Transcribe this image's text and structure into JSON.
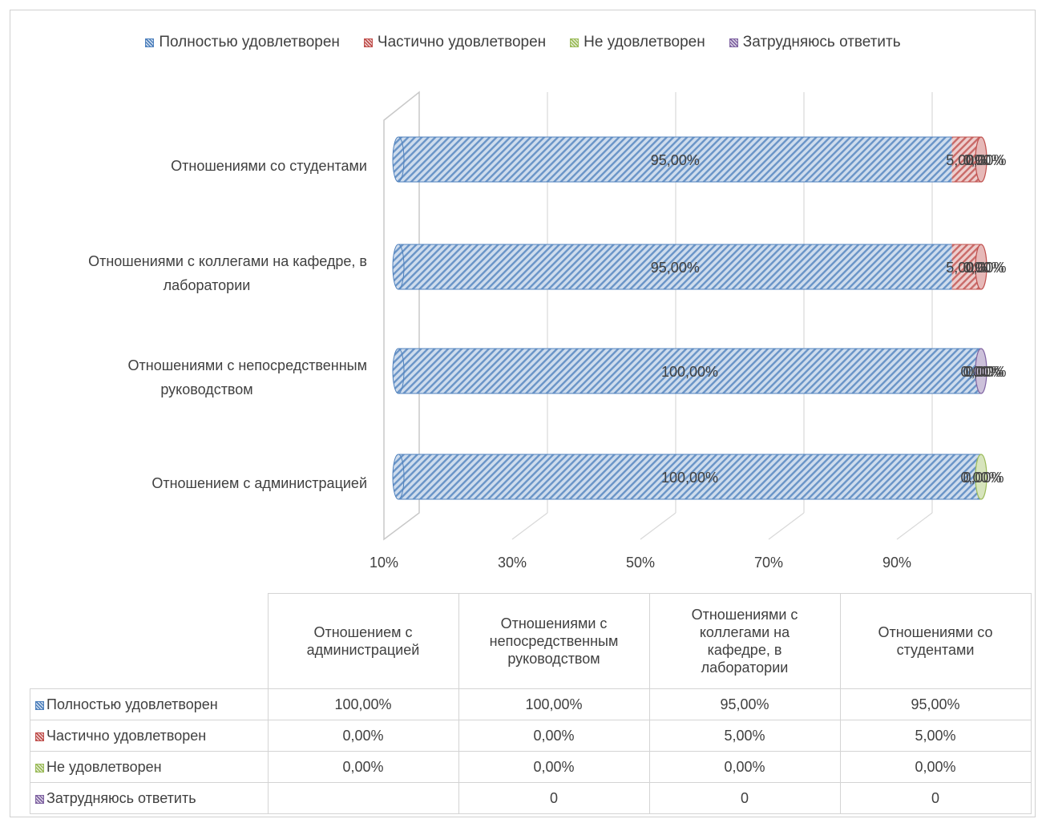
{
  "chart_data": {
    "type": "bar",
    "orientation": "horizontal",
    "stacked": true,
    "categories": [
      "Отношениями со студентами",
      "Отношениями с коллегами на кафедре, в лаборатории",
      "Отношениями с непосредственным руководством",
      "Отношением с администрацией"
    ],
    "table_categories": [
      "Отношением с администрацией",
      "Отношениями с непосредственным руководством",
      "Отношениями с коллегами на кафедре, в лаборатории",
      "Отношениями со студентами"
    ],
    "series": [
      {
        "name": "Полностью удовлетворен",
        "color": "#4f81bd",
        "values": [
          95,
          95,
          100,
          100
        ],
        "labels": [
          "95,00%",
          "95,00%",
          "100,00%",
          "100,00%"
        ]
      },
      {
        "name": "Частично удовлетворен",
        "color": "#c0504d",
        "values": [
          5,
          5,
          0,
          0
        ],
        "labels": [
          "5,00%",
          "5,00%",
          "0,00%",
          "0,00%"
        ]
      },
      {
        "name": "Не удовлетворен",
        "color": "#9bbb59",
        "values": [
          0,
          0,
          0,
          0
        ],
        "labels": [
          "0,00%",
          "0,00%",
          "0,00%",
          "0,00%"
        ]
      },
      {
        "name": "Затрудняюсь ответить",
        "color": "#8064a2",
        "values": [
          0,
          0,
          0,
          0
        ],
        "labels": [
          "0,00%",
          "0,00%",
          "0,00%",
          ""
        ]
      }
    ],
    "table_rows": [
      {
        "name": "Полностью удовлетворен",
        "color": "#4f81bd",
        "cells": [
          "100,00%",
          "100,00%",
          "95,00%",
          "95,00%"
        ]
      },
      {
        "name": "Частично удовлетворен",
        "color": "#c0504d",
        "cells": [
          "0,00%",
          "0,00%",
          "5,00%",
          "5,00%"
        ]
      },
      {
        "name": "Не удовлетворен",
        "color": "#9bbb59",
        "cells": [
          "0,00%",
          "0,00%",
          "0,00%",
          "0,00%"
        ]
      },
      {
        "name": "Затрудняюсь ответить",
        "color": "#8064a2",
        "cells": [
          "",
          "0",
          "0",
          "0"
        ]
      }
    ],
    "x_ticks": [
      "10%",
      "30%",
      "50%",
      "70%",
      "90%"
    ],
    "xlim": [
      0,
      100
    ],
    "legend_position": "top",
    "grid": true
  }
}
